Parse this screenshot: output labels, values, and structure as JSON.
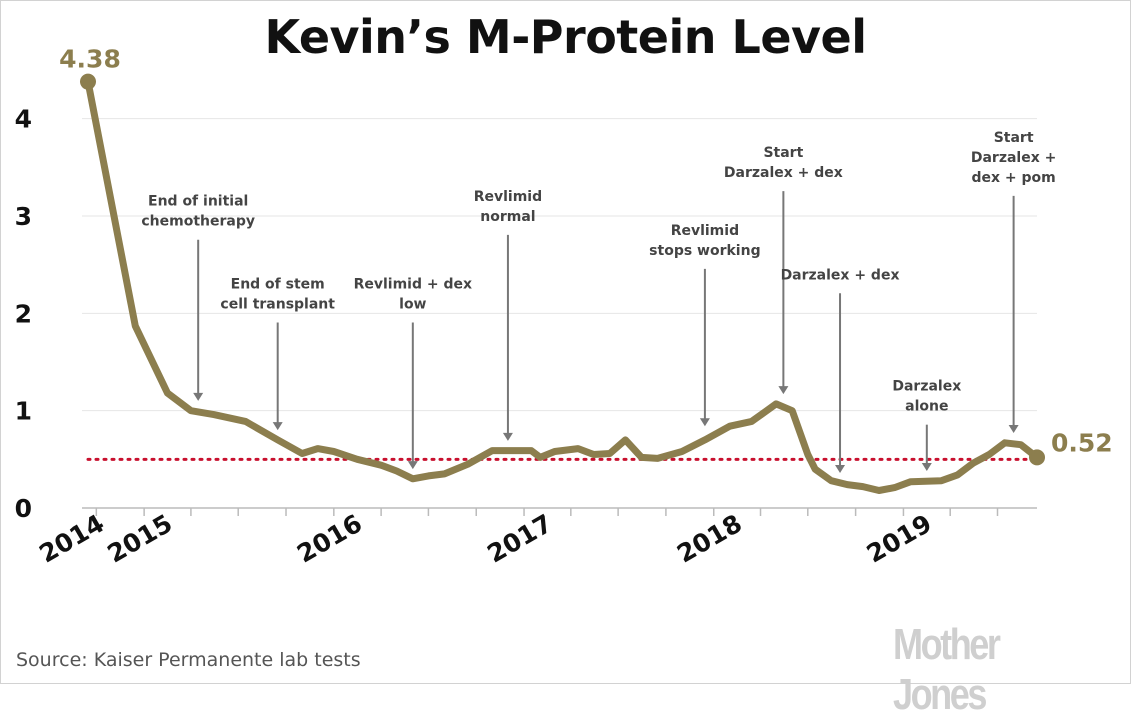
{
  "title": "Kevin’s M-Protein Level",
  "source": "Source: Kaiser Permanente lab tests",
  "logo": "Mother Jones",
  "colors": {
    "line": "#8c7e4e",
    "threshold": "#c8102e",
    "grid": "#e6e6e6",
    "annotation": "#777777",
    "text": "#111111"
  },
  "chart_data": {
    "type": "line",
    "title": "Kevin’s M-Protein Level",
    "xlabel": "",
    "ylabel": "",
    "ylim": [
      0,
      4.5
    ],
    "yticks": [
      "0",
      "1",
      "2",
      "3",
      "4"
    ],
    "xticks": [
      "2014",
      "2015",
      "2016",
      "2017",
      "2018",
      "2019"
    ],
    "xlim": [
      "2014-07-01",
      "2019-09-15"
    ],
    "grid": true,
    "threshold": 0.5,
    "series": [
      {
        "values": [
          [
            "2014-09-15",
            4.38
          ],
          [
            "2014-12-15",
            1.87
          ],
          [
            "2015-02-15",
            1.18
          ],
          [
            "2015-04-01",
            1.0
          ],
          [
            "2015-05-15",
            0.96
          ],
          [
            "2015-07-15",
            0.89
          ],
          [
            "2015-09-15",
            0.7
          ],
          [
            "2015-11-01",
            0.56
          ],
          [
            "2015-12-01",
            0.61
          ],
          [
            "2016-01-01",
            0.58
          ],
          [
            "2016-02-15",
            0.5
          ],
          [
            "2016-04-01",
            0.44
          ],
          [
            "2016-05-01",
            0.38
          ],
          [
            "2016-06-01",
            0.3
          ],
          [
            "2016-07-01",
            0.33
          ],
          [
            "2016-08-01",
            0.35
          ],
          [
            "2016-09-15",
            0.45
          ],
          [
            "2016-11-01",
            0.59
          ],
          [
            "2016-12-15",
            0.59
          ],
          [
            "2017-01-15",
            0.59
          ],
          [
            "2017-02-01",
            0.52
          ],
          [
            "2017-03-01",
            0.58
          ],
          [
            "2017-04-15",
            0.61
          ],
          [
            "2017-05-15",
            0.55
          ],
          [
            "2017-06-15",
            0.56
          ],
          [
            "2017-07-15",
            0.7
          ],
          [
            "2017-08-15",
            0.52
          ],
          [
            "2017-09-15",
            0.51
          ],
          [
            "2017-11-01",
            0.58
          ],
          [
            "2017-12-15",
            0.7
          ],
          [
            "2018-02-01",
            0.84
          ],
          [
            "2018-03-15",
            0.89
          ],
          [
            "2018-05-01",
            1.07
          ],
          [
            "2018-06-01",
            1.0
          ],
          [
            "2018-07-01",
            0.55
          ],
          [
            "2018-07-15",
            0.4
          ],
          [
            "2018-08-15",
            0.28
          ],
          [
            "2018-09-15",
            0.24
          ],
          [
            "2018-10-15",
            0.22
          ],
          [
            "2018-11-15",
            0.18
          ],
          [
            "2018-12-15",
            0.21
          ],
          [
            "2019-01-15",
            0.27
          ],
          [
            "2019-03-15",
            0.28
          ],
          [
            "2019-04-15",
            0.34
          ],
          [
            "2019-05-15",
            0.46
          ],
          [
            "2019-06-15",
            0.55
          ],
          [
            "2019-07-15",
            0.67
          ],
          [
            "2019-08-15",
            0.65
          ],
          [
            "2019-09-15",
            0.52
          ]
        ]
      }
    ],
    "value_labels": [
      {
        "date": "2014-09-15",
        "value": 4.38,
        "text": "4.38"
      },
      {
        "date": "2019-09-15",
        "value": 0.52,
        "text": "0.52"
      }
    ],
    "annotations": [
      {
        "lines": [
          "End of initial",
          "chemotherapy"
        ],
        "date": "2015-04-15",
        "top_value": 2.9,
        "bottom_value": 1.1
      },
      {
        "lines": [
          "End of stem",
          "cell transplant"
        ],
        "date": "2015-09-15",
        "top_value": 2.05,
        "bottom_value": 0.8
      },
      {
        "lines": [
          "Revlimid + dex",
          "low"
        ],
        "date": "2016-06-01",
        "top_value": 2.05,
        "bottom_value": 0.4
      },
      {
        "lines": [
          "Revlimid",
          "normal"
        ],
        "date": "2016-12-01",
        "top_value": 2.95,
        "bottom_value": 0.69
      },
      {
        "lines": [
          "Revlimid",
          "stops working"
        ],
        "date": "2017-12-15",
        "top_value": 2.6,
        "bottom_value": 0.84
      },
      {
        "lines": [
          "Start",
          "Darzalex + dex"
        ],
        "date": "2018-05-15",
        "top_value": 3.4,
        "bottom_value": 1.17
      },
      {
        "lines": [
          "Darzalex + dex"
        ],
        "date": "2018-09-01",
        "top_value": 2.35,
        "bottom_value": 0.36
      },
      {
        "lines": [
          "Darzalex",
          "alone"
        ],
        "date": "2019-02-15",
        "top_value": 1.0,
        "bottom_value": 0.38
      },
      {
        "lines": [
          "Start",
          "Darzalex +",
          "dex + pom"
        ],
        "date": "2019-08-01",
        "top_value": 3.35,
        "bottom_value": 0.77
      }
    ]
  }
}
